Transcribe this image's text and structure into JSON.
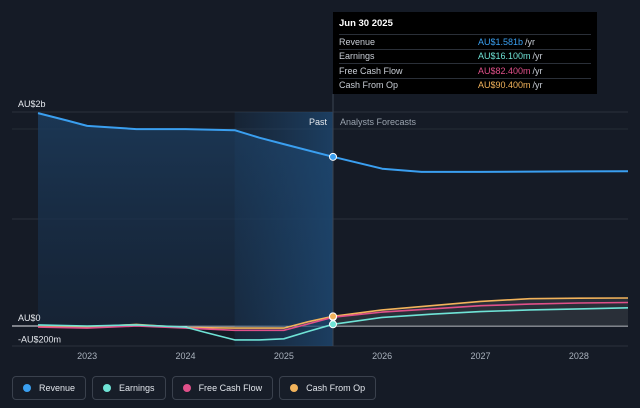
{
  "tooltip": {
    "date": "Jun 30 2025",
    "rows": [
      {
        "label": "Revenue",
        "value": "AU$1.581b",
        "unit": "/yr",
        "color": "#3a9ff0"
      },
      {
        "label": "Earnings",
        "value": "AU$16.100m",
        "unit": "/yr",
        "color": "#6fe3d6"
      },
      {
        "label": "Free Cash Flow",
        "value": "AU$82.400m",
        "unit": "/yr",
        "color": "#e0508a"
      },
      {
        "label": "Cash From Op",
        "value": "AU$90.400m",
        "unit": "/yr",
        "color": "#f2b35b"
      }
    ]
  },
  "chart_data": {
    "type": "line",
    "y_tick_labels": [
      "AU$2b",
      "AU$0",
      "-AU$200m"
    ],
    "x_tick_labels": [
      "2023",
      "2024",
      "2025",
      "2026",
      "2027",
      "2028"
    ],
    "section_labels": {
      "past": "Past",
      "forecast": "Analysts Forecasts"
    },
    "ylim": [
      -200,
      2000
    ],
    "units": "AU$m",
    "series": [
      {
        "name": "Revenue",
        "color": "#3a9ff0",
        "x": [
          2022.5,
          2022.8,
          2023.0,
          2023.5,
          2024.0,
          2024.5,
          2024.75,
          2025.0,
          2025.5,
          2026.0,
          2026.4,
          2027.0,
          2028.0,
          2028.5
        ],
        "y": [
          1990,
          1920,
          1870,
          1840,
          1840,
          1830,
          1760,
          1700,
          1581,
          1470,
          1440,
          1440,
          1445,
          1447
        ]
      },
      {
        "name": "Earnings",
        "color": "#6fe3d6",
        "x": [
          2022.5,
          2023.0,
          2023.5,
          2024.0,
          2024.2,
          2024.5,
          2024.75,
          2025.0,
          2025.25,
          2025.5,
          2026.0,
          2026.5,
          2027.0,
          2027.5,
          2028.0,
          2028.5
        ],
        "y": [
          10,
          0,
          10,
          -10,
          -60,
          -130,
          -130,
          -120,
          -50,
          16.1,
          80,
          110,
          135,
          150,
          160,
          170
        ]
      },
      {
        "name": "Free Cash Flow",
        "color": "#e0508a",
        "x": [
          2022.5,
          2023.0,
          2023.5,
          2024.0,
          2024.5,
          2025.0,
          2025.25,
          2025.5,
          2026.0,
          2026.5,
          2027.0,
          2027.5,
          2028.0,
          2028.5
        ],
        "y": [
          -10,
          -20,
          0,
          -20,
          -40,
          -40,
          20,
          82.4,
          130,
          160,
          190,
          205,
          215,
          220
        ]
      },
      {
        "name": "Cash From Op",
        "color": "#f2b35b",
        "x": [
          2022.5,
          2023.0,
          2023.5,
          2024.0,
          2024.5,
          2025.0,
          2025.25,
          2025.5,
          2026.0,
          2026.5,
          2027.0,
          2027.5,
          2028.0,
          2028.5
        ],
        "y": [
          -5,
          -10,
          15,
          -15,
          -20,
          -20,
          40,
          90.4,
          150,
          190,
          230,
          255,
          260,
          262
        ]
      }
    ]
  },
  "legend": [
    {
      "label": "Revenue",
      "color": "#3a9ff0"
    },
    {
      "label": "Earnings",
      "color": "#6fe3d6"
    },
    {
      "label": "Free Cash Flow",
      "color": "#e0508a"
    },
    {
      "label": "Cash From Op",
      "color": "#f2b35b"
    }
  ]
}
